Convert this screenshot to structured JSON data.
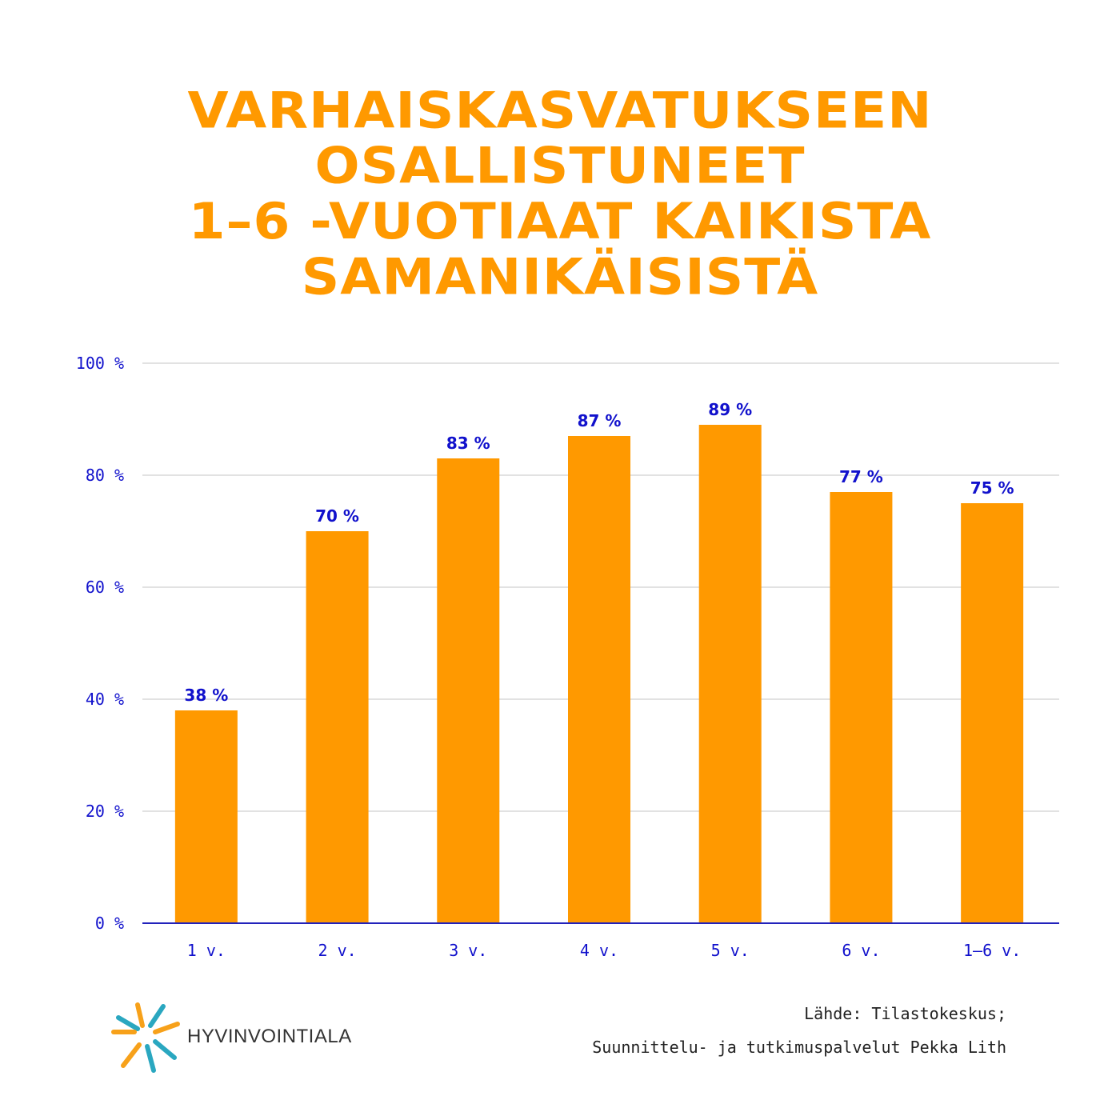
{
  "title_lines": [
    "VARHAISKASVATUKSEEN",
    "OSALLISTUNEET",
    "1–6 -VUOTIAAT KAIKISTA",
    "SAMANIKÄISISTÄ"
  ],
  "colors": {
    "accent": "#FF9900",
    "axis_text": "#1111CC",
    "value_label": "#1111CC",
    "grid": "#D9D9D9",
    "baseline": "#2222BB",
    "logo_teal": "#2AA7C0",
    "logo_orange": "#F7A11A"
  },
  "chart_data": {
    "type": "bar",
    "categories": [
      "1 v.",
      "2 v.",
      "3 v.",
      "4 v.",
      "5 v.",
      "6 v.",
      "1–6 v."
    ],
    "values": [
      38,
      70,
      83,
      87,
      89,
      77,
      75
    ],
    "value_labels": [
      "38 %",
      "70 %",
      "83 %",
      "87 %",
      "89 %",
      "77 %",
      "75 %"
    ],
    "ylim": [
      0,
      100
    ],
    "yticks": [
      0,
      20,
      40,
      60,
      80,
      100
    ],
    "ytick_labels": [
      "0 %",
      "20 %",
      "40 %",
      "60 %",
      "80 %",
      "100 %"
    ],
    "grid": true,
    "legend": "none"
  },
  "logo": {
    "icon": "starburst-logo-icon",
    "text": "HYVINVOINTIALA"
  },
  "source": {
    "line1": "Lähde: Tilastokeskus;",
    "line2": "Suunnittelu- ja tutkimuspalvelut Pekka Lith"
  }
}
